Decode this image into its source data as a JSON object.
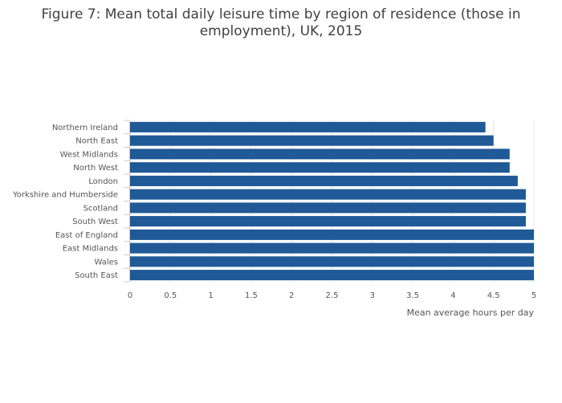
{
  "chart_data": {
    "type": "bar",
    "orientation": "horizontal",
    "title": "Figure 7: Mean total daily leisure time by region of residence (those in employment), UK, 2015",
    "xlabel": "Mean average hours per day",
    "ylabel": "",
    "xlim": [
      0,
      5
    ],
    "xticks": [
      0,
      0.5,
      1,
      1.5,
      2,
      2.5,
      3,
      3.5,
      4,
      4.5,
      5
    ],
    "grid": true,
    "bar_color": "#1f5a96",
    "categories": [
      "Northern Ireland",
      "North East",
      "West Midlands",
      "North West",
      "London",
      "Yorkshire and Humberside",
      "Scotland",
      "South West",
      "East of England",
      "East Midlands",
      "Wales",
      "South East"
    ],
    "values": [
      4.4,
      4.5,
      4.7,
      4.7,
      4.8,
      4.9,
      4.9,
      4.9,
      5.0,
      5.0,
      5.0,
      5.0
    ]
  }
}
